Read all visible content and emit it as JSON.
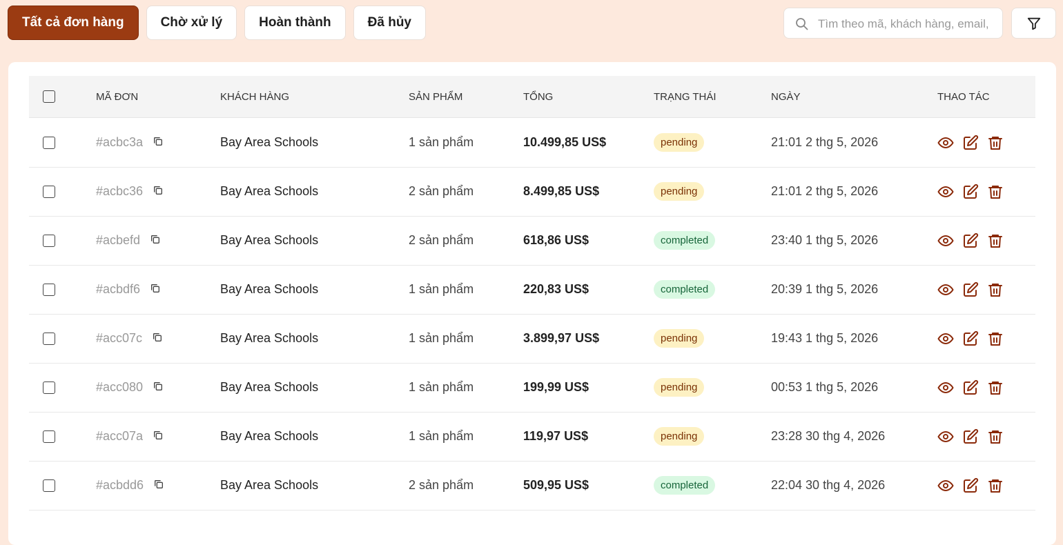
{
  "tabs": [
    "Tất cả đơn hàng",
    "Chờ xử lý",
    "Hoàn thành",
    "Đã hủy"
  ],
  "active_tab": 0,
  "search_placeholder": "Tìm theo mã, khách hàng, email,",
  "table": {
    "headers": [
      "MÃ ĐƠN",
      "KHÁCH HÀNG",
      "SẢN PHẨM",
      "TỔNG",
      "TRẠNG THÁI",
      "NGÀY",
      "THAO TÁC"
    ],
    "rows": [
      [
        "#acbc3a",
        "Bay Area Schools",
        "1 sản phẩm",
        "10.499,85 US$",
        "pending",
        "21:01 2 thg 5, 2026"
      ],
      [
        "#acbc36",
        "Bay Area Schools",
        "2 sản phẩm",
        "8.499,85 US$",
        "pending",
        "21:01 2 thg 5, 2026"
      ],
      [
        "#acbefd",
        "Bay Area Schools",
        "2 sản phẩm",
        "618,86 US$",
        "completed",
        "23:40 1 thg 5, 2026"
      ],
      [
        "#acbdf6",
        "Bay Area Schools",
        "1 sản phẩm",
        "220,83 US$",
        "completed",
        "20:39 1 thg 5, 2026"
      ],
      [
        "#acc07c",
        "Bay Area Schools",
        "1 sản phẩm",
        "3.899,97 US$",
        "pending",
        "19:43 1 thg 5, 2026"
      ],
      [
        "#acc080",
        "Bay Area Schools",
        "1 sản phẩm",
        "199,99 US$",
        "pending",
        "00:53 1 thg 5, 2026"
      ],
      [
        "#acc07a",
        "Bay Area Schools",
        "1 sản phẩm",
        "119,97 US$",
        "pending",
        "23:28 30 thg 4, 2026"
      ],
      [
        "#acbdd6",
        "Bay Area Schools",
        "2 sản phẩm",
        "509,95 US$",
        "completed",
        "22:04 30 thg 4, 2026"
      ]
    ]
  }
}
